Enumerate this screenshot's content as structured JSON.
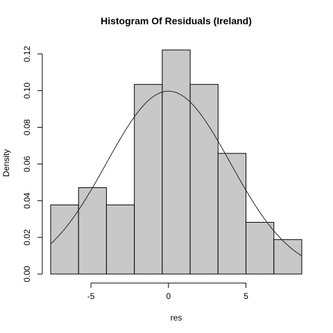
{
  "chart_data": {
    "type": "bar",
    "title": "Histogram Of Residuals (Ireland)",
    "xlabel": "res",
    "ylabel": "Density",
    "bins": [
      {
        "x0": -7.6,
        "x1": -5.8,
        "density": 0.0377
      },
      {
        "x0": -5.8,
        "x1": -4.0,
        "density": 0.0471
      },
      {
        "x0": -4.0,
        "x1": -2.2,
        "density": 0.0377
      },
      {
        "x0": -2.2,
        "x1": -0.4,
        "density": 0.1034
      },
      {
        "x0": -0.4,
        "x1": 1.4,
        "density": 0.1222
      },
      {
        "x0": 1.4,
        "x1": 3.2,
        "density": 0.1034
      },
      {
        "x0": 3.2,
        "x1": 5.0,
        "density": 0.0658
      },
      {
        "x0": 5.0,
        "x1": 6.8,
        "density": 0.0282
      },
      {
        "x0": 6.8,
        "x1": 8.6,
        "density": 0.0188
      }
    ],
    "x_ticks": [
      -5,
      0,
      5
    ],
    "x_tick_labels": [
      "-5",
      "0",
      "5"
    ],
    "y_ticks": [
      0,
      0.02,
      0.04,
      0.06,
      0.08,
      0.1,
      0.12
    ],
    "y_tick_labels": [
      "0.00",
      "0.02",
      "0.04",
      "0.06",
      "0.08",
      "0.10",
      "0.12"
    ],
    "xlim": [
      -7.6,
      8.6
    ],
    "ylim": [
      0,
      0.1222
    ],
    "normal_curve": {
      "mean": 0,
      "sd": 4.0,
      "x_range": [
        -7.6,
        8.6
      ]
    },
    "grid": false,
    "legend": "none"
  }
}
